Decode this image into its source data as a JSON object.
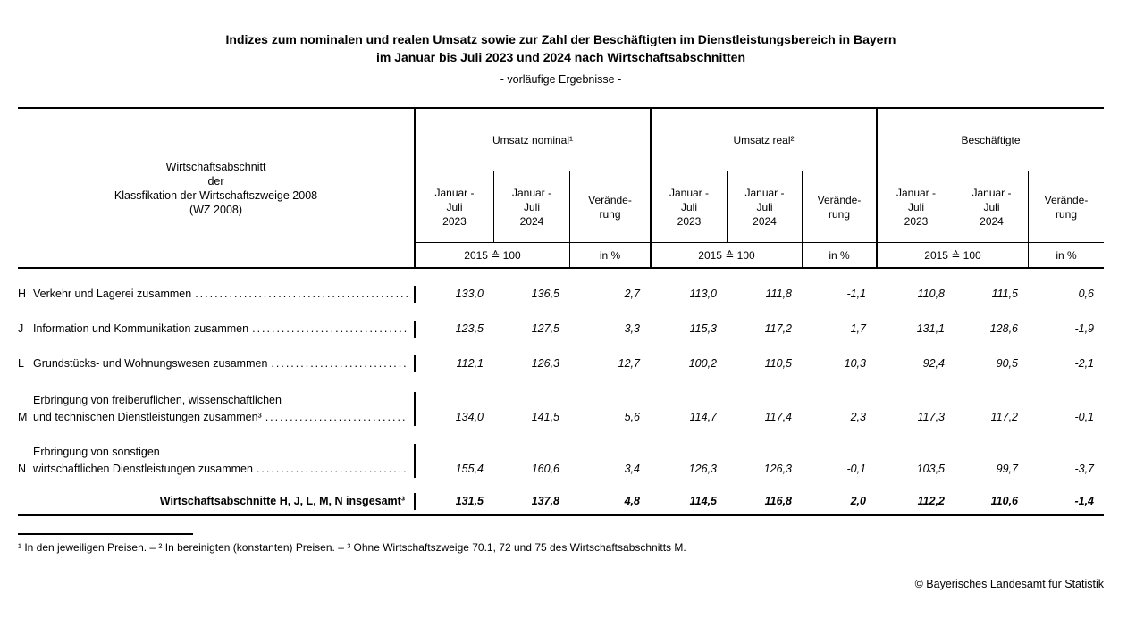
{
  "page": {
    "title_line1": "Indizes zum nominalen und realen Umsatz sowie zur Zahl der Beschäftigten im Dienstleistungsbereich in Bayern",
    "title_line2": "im Januar bis Juli 2023 und 2024 nach Wirtschaftsabschnitten",
    "title_line3": "- vorläufige Ergebnisse -",
    "footnote": "¹ In den jeweiligen Preisen. – ² In bereinigten (konstanten) Preisen. – ³ Ohne Wirtschaftszweige 70.1, 72 und 75 des Wirtschaftsabschnitts M.",
    "copyright": "© Bayerisches Landesamt für Statistik"
  },
  "table": {
    "stub_header": "Wirtschaftsabschnitt\nder\nKlassfikation der Wirtschaftszweige 2008\n(WZ 2008)",
    "group_nominal": "Umsatz nominal¹",
    "group_real": "Umsatz real²",
    "group_employees": "Beschäftigte",
    "period_2023": "Januar -\nJuli\n2023",
    "period_2024": "Januar -\nJuli\n2024",
    "period_change": "Verände-\nrung",
    "unit_index": "2015 ≙ 100",
    "unit_percent": "in %",
    "rows": [
      {
        "letter": "H",
        "label": "Verkehr und Lagerei zusammen",
        "values": [
          "133,0",
          "136,5",
          "2,7",
          "113,0",
          "111,8",
          "-1,1",
          "110,8",
          "111,5",
          "0,6"
        ]
      },
      {
        "letter": "J",
        "label": "Information und Kommunikation zusammen",
        "values": [
          "123,5",
          "127,5",
          "3,3",
          "115,3",
          "117,2",
          "1,7",
          "131,1",
          "128,6",
          "-1,9"
        ]
      },
      {
        "letter": "L",
        "label": "Grundstücks- und Wohnungswesen zusammen",
        "values": [
          "112,1",
          "126,3",
          "12,7",
          "100,2",
          "110,5",
          "10,3",
          "92,4",
          "90,5",
          "-2,1"
        ]
      },
      {
        "letter": "M",
        "label": "Erbringung von freiberuflichen, wissenschaftlichen",
        "label2": "und technischen Dienstleistungen zusammen³",
        "values": [
          "134,0",
          "141,5",
          "5,6",
          "114,7",
          "117,4",
          "2,3",
          "117,3",
          "117,2",
          "-0,1"
        ]
      },
      {
        "letter": "N",
        "label": "Erbringung von sonstigen",
        "label2": "wirtschaftlichen Dienstleistungen zusammen",
        "values": [
          "155,4",
          "160,6",
          "3,4",
          "126,3",
          "126,3",
          "-0,1",
          "103,5",
          "99,7",
          "-3,7"
        ]
      },
      {
        "letter": "",
        "label": "Wirtschaftsabschnitte H, J, L, M, N insgesamt³",
        "values": [
          "131,5",
          "137,8",
          "4,8",
          "114,5",
          "116,8",
          "2,0",
          "112,2",
          "110,6",
          "-1,4"
        ]
      }
    ]
  }
}
